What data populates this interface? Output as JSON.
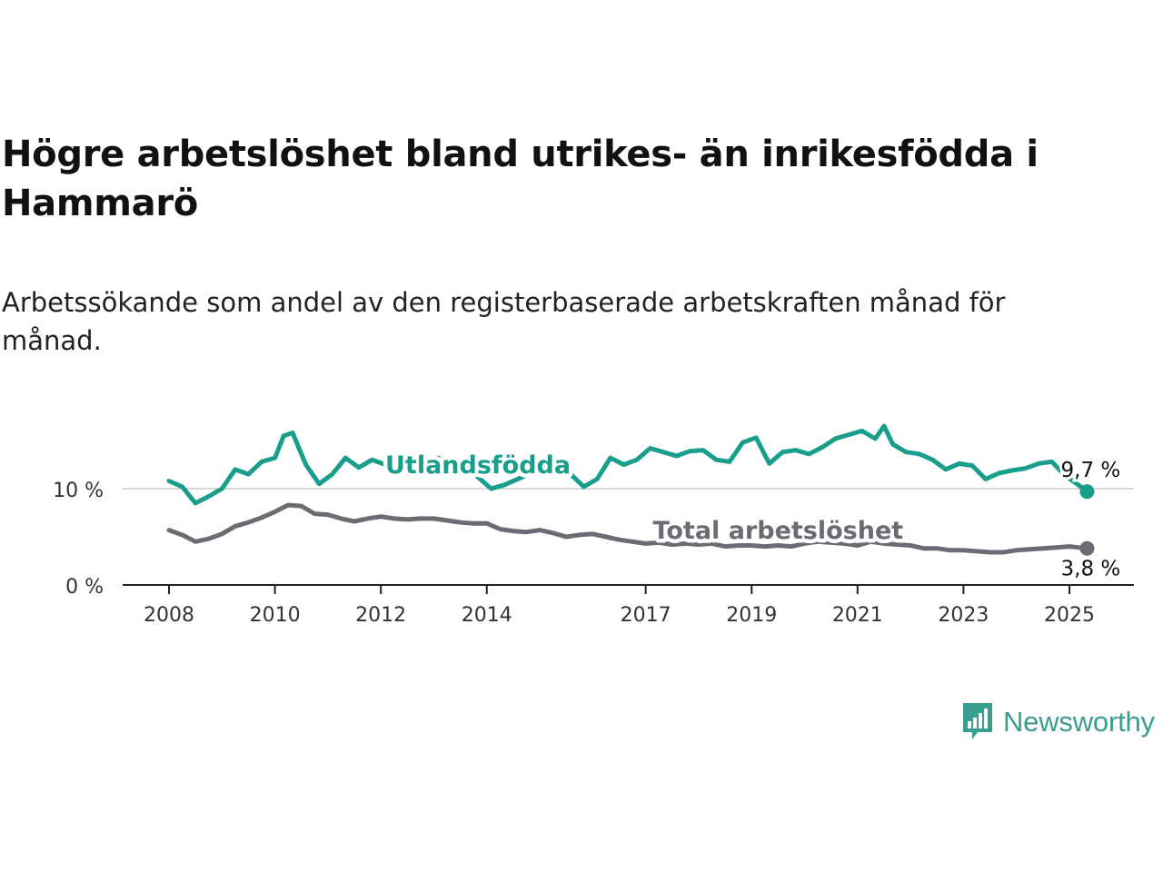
{
  "title": "Högre arbetslöshet bland utrikes- än inrikesfödda i Hammarö",
  "subtitle": "Arbetssökande som andel av den registerbaserade arbetskraften månad för månad.",
  "brand": {
    "name": "Newsworthy",
    "icon": "bar-chart-speech-bubble-icon",
    "color": "#3a9e8c"
  },
  "chart_data": {
    "type": "line",
    "x_range": [
      "2008-01",
      "2025-06"
    ],
    "ylim": [
      0,
      20
    ],
    "y_ticks": [
      {
        "value": 0,
        "label": "0 %"
      },
      {
        "value": 10,
        "label": "10 %"
      }
    ],
    "x_ticks": [
      {
        "date": "2008-01",
        "label": "2008"
      },
      {
        "date": "2010-01",
        "label": "2010"
      },
      {
        "date": "2012-01",
        "label": "2012"
      },
      {
        "date": "2014-01",
        "label": "2014"
      },
      {
        "date": "2017-01",
        "label": "2017"
      },
      {
        "date": "2019-01",
        "label": "2019"
      },
      {
        "date": "2021-01",
        "label": "2021"
      },
      {
        "date": "2023-01",
        "label": "2023"
      },
      {
        "date": "2025-01",
        "label": "2025"
      }
    ],
    "series": [
      {
        "name": "Utlandsfödda",
        "color": "#1a9e8c",
        "end_label": "9,7 %",
        "points": [
          [
            "2008-01",
            10.8
          ],
          [
            "2008-04",
            10.2
          ],
          [
            "2008-07",
            8.5
          ],
          [
            "2008-10",
            9.2
          ],
          [
            "2009-01",
            10.0
          ],
          [
            "2009-04",
            12.0
          ],
          [
            "2009-07",
            11.5
          ],
          [
            "2009-10",
            12.8
          ],
          [
            "2010-01",
            13.2
          ],
          [
            "2010-03",
            15.5
          ],
          [
            "2010-05",
            15.8
          ],
          [
            "2010-08",
            12.5
          ],
          [
            "2010-11",
            10.5
          ],
          [
            "2011-02",
            11.5
          ],
          [
            "2011-05",
            13.2
          ],
          [
            "2011-08",
            12.2
          ],
          [
            "2011-11",
            13.0
          ],
          [
            "2012-02",
            12.5
          ],
          [
            "2012-05",
            12.8
          ],
          [
            "2012-08",
            12.0
          ],
          [
            "2012-11",
            12.6
          ],
          [
            "2013-02",
            13.2
          ],
          [
            "2013-05",
            12.4
          ],
          [
            "2013-08",
            12.8
          ],
          [
            "2013-11",
            11.2
          ],
          [
            "2014-02",
            10.0
          ],
          [
            "2014-05",
            10.4
          ],
          [
            "2014-08",
            11.0
          ],
          [
            "2014-11",
            11.6
          ],
          [
            "2015-02",
            12.2
          ],
          [
            "2015-05",
            12.8
          ],
          [
            "2015-08",
            11.5
          ],
          [
            "2015-11",
            10.2
          ],
          [
            "2016-02",
            11.0
          ],
          [
            "2016-05",
            13.2
          ],
          [
            "2016-08",
            12.5
          ],
          [
            "2016-11",
            13.0
          ],
          [
            "2017-02",
            14.2
          ],
          [
            "2017-05",
            13.8
          ],
          [
            "2017-08",
            13.4
          ],
          [
            "2017-11",
            13.9
          ],
          [
            "2018-02",
            14.0
          ],
          [
            "2018-05",
            13.0
          ],
          [
            "2018-08",
            12.8
          ],
          [
            "2018-11",
            14.8
          ],
          [
            "2019-02",
            15.3
          ],
          [
            "2019-05",
            12.6
          ],
          [
            "2019-08",
            13.8
          ],
          [
            "2019-11",
            14.0
          ],
          [
            "2020-02",
            13.6
          ],
          [
            "2020-05",
            14.3
          ],
          [
            "2020-08",
            15.2
          ],
          [
            "2020-11",
            15.6
          ],
          [
            "2021-02",
            16.0
          ],
          [
            "2021-05",
            15.2
          ],
          [
            "2021-07",
            16.5
          ],
          [
            "2021-09",
            14.6
          ],
          [
            "2021-12",
            13.8
          ],
          [
            "2022-03",
            13.6
          ],
          [
            "2022-06",
            13.0
          ],
          [
            "2022-09",
            12.0
          ],
          [
            "2022-12",
            12.6
          ],
          [
            "2023-03",
            12.4
          ],
          [
            "2023-06",
            11.0
          ],
          [
            "2023-09",
            11.6
          ],
          [
            "2023-12",
            11.9
          ],
          [
            "2024-03",
            12.1
          ],
          [
            "2024-06",
            12.6
          ],
          [
            "2024-09",
            12.8
          ],
          [
            "2024-12",
            11.4
          ],
          [
            "2025-03",
            10.4
          ],
          [
            "2025-05",
            9.7
          ]
        ]
      },
      {
        "name": "Total arbetslöshet",
        "color": "#6b6b73",
        "end_label": "3,8 %",
        "points": [
          [
            "2008-01",
            5.7
          ],
          [
            "2008-04",
            5.2
          ],
          [
            "2008-07",
            4.5
          ],
          [
            "2008-10",
            4.8
          ],
          [
            "2009-01",
            5.3
          ],
          [
            "2009-04",
            6.1
          ],
          [
            "2009-07",
            6.5
          ],
          [
            "2009-10",
            7.0
          ],
          [
            "2010-01",
            7.6
          ],
          [
            "2010-04",
            8.3
          ],
          [
            "2010-07",
            8.2
          ],
          [
            "2010-10",
            7.4
          ],
          [
            "2011-01",
            7.3
          ],
          [
            "2011-04",
            6.9
          ],
          [
            "2011-07",
            6.6
          ],
          [
            "2011-10",
            6.9
          ],
          [
            "2012-01",
            7.1
          ],
          [
            "2012-04",
            6.9
          ],
          [
            "2012-07",
            6.8
          ],
          [
            "2012-10",
            6.9
          ],
          [
            "2013-01",
            6.9
          ],
          [
            "2013-04",
            6.7
          ],
          [
            "2013-07",
            6.5
          ],
          [
            "2013-10",
            6.4
          ],
          [
            "2014-01",
            6.4
          ],
          [
            "2014-04",
            5.8
          ],
          [
            "2014-07",
            5.6
          ],
          [
            "2014-10",
            5.5
          ],
          [
            "2015-01",
            5.7
          ],
          [
            "2015-04",
            5.4
          ],
          [
            "2015-07",
            5.0
          ],
          [
            "2015-10",
            5.2
          ],
          [
            "2016-01",
            5.3
          ],
          [
            "2016-04",
            5.0
          ],
          [
            "2016-07",
            4.7
          ],
          [
            "2016-10",
            4.5
          ],
          [
            "2017-01",
            4.3
          ],
          [
            "2017-04",
            4.4
          ],
          [
            "2017-07",
            4.2
          ],
          [
            "2017-10",
            4.3
          ],
          [
            "2018-01",
            4.2
          ],
          [
            "2018-04",
            4.3
          ],
          [
            "2018-07",
            4.0
          ],
          [
            "2018-10",
            4.1
          ],
          [
            "2019-01",
            4.1
          ],
          [
            "2019-04",
            4.0
          ],
          [
            "2019-07",
            4.1
          ],
          [
            "2019-10",
            4.0
          ],
          [
            "2020-01",
            4.3
          ],
          [
            "2020-04",
            4.5
          ],
          [
            "2020-07",
            4.4
          ],
          [
            "2020-10",
            4.3
          ],
          [
            "2021-01",
            4.1
          ],
          [
            "2021-04",
            4.5
          ],
          [
            "2021-07",
            4.3
          ],
          [
            "2021-10",
            4.2
          ],
          [
            "2022-01",
            4.1
          ],
          [
            "2022-04",
            3.8
          ],
          [
            "2022-07",
            3.8
          ],
          [
            "2022-10",
            3.6
          ],
          [
            "2023-01",
            3.6
          ],
          [
            "2023-04",
            3.5
          ],
          [
            "2023-07",
            3.4
          ],
          [
            "2023-10",
            3.4
          ],
          [
            "2024-01",
            3.6
          ],
          [
            "2024-04",
            3.7
          ],
          [
            "2024-07",
            3.8
          ],
          [
            "2024-10",
            3.9
          ],
          [
            "2025-01",
            4.0
          ],
          [
            "2025-05",
            3.8
          ]
        ]
      }
    ],
    "inline_labels": [
      {
        "series": 0,
        "text": "Utlandsfödda",
        "date": "2013-11",
        "value": 11.6
      },
      {
        "series": 1,
        "text": "Total arbetslöshet",
        "date": "2019-07",
        "value": 4.8
      }
    ],
    "grid": "horizontal"
  }
}
